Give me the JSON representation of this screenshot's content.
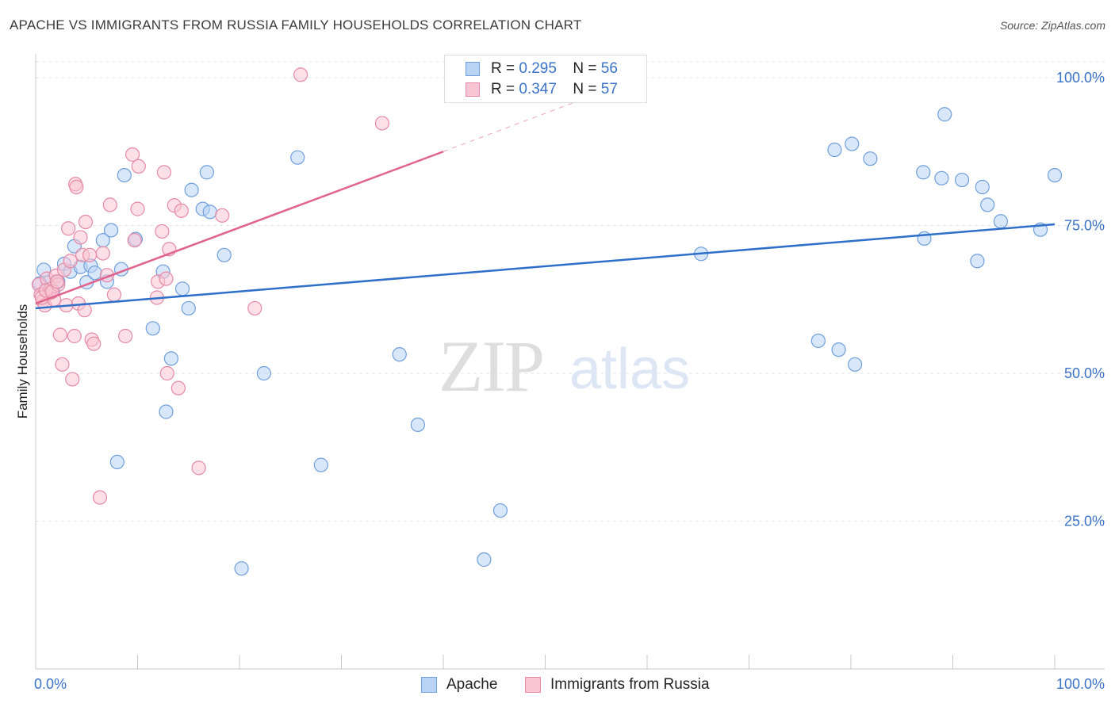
{
  "title": "APACHE VS IMMIGRANTS FROM RUSSIA FAMILY HOUSEHOLDS CORRELATION CHART",
  "source": "Source: ZipAtlas.com",
  "watermark": {
    "zip": "ZIP",
    "atlas": "atlas"
  },
  "legend": {
    "apache": {
      "r_label": "R =",
      "r_value": "0.295",
      "n_label": "N =",
      "n_value": "56"
    },
    "russia": {
      "r_label": "R =",
      "r_value": "0.347",
      "n_label": "N =",
      "n_value": "57"
    }
  },
  "colors": {
    "apache_fill": "#b9d3f5",
    "apache_stroke": "#6f9fdb",
    "apache_line": "#2e6fc9",
    "russia_fill": "#f9c4d4",
    "russia_stroke": "#e58aa6",
    "russia_line": "#e0648e",
    "tick_label": "#3a72c8",
    "grid": "#e3e3e3"
  },
  "chart_data": {
    "type": "scatter",
    "title": "APACHE VS IMMIGRANTS FROM RUSSIA FAMILY HOUSEHOLDS CORRELATION CHART",
    "xlabel": "",
    "ylabel": "Family Households",
    "xlim": [
      0,
      100
    ],
    "ylim": [
      0,
      102
    ],
    "x_tick_labels": [
      {
        "value": 0,
        "label": "0.0%"
      },
      {
        "value": 100,
        "label": "100.0%"
      }
    ],
    "y_tick_labels": [
      {
        "value": 25,
        "label": "25.0%"
      },
      {
        "value": 50,
        "label": "50.0%"
      },
      {
        "value": 75,
        "label": "75.0%"
      },
      {
        "value": 100,
        "label": "100.0%"
      }
    ],
    "grid": true,
    "legend_position": "top-center",
    "series": [
      {
        "name": "Apache",
        "r": 0.295,
        "n": 56,
        "trend": {
          "x0": 0,
          "y0": 61.0,
          "x1": 100,
          "y1": 75.2
        },
        "points": [
          [
            0.8,
            67.5
          ],
          [
            1.2,
            65.3
          ],
          [
            1.7,
            64.0
          ],
          [
            2.2,
            65.5
          ],
          [
            2.8,
            68.5
          ],
          [
            3.4,
            67.2
          ],
          [
            3.8,
            71.5
          ],
          [
            4.4,
            68.0
          ],
          [
            5.0,
            65.4
          ],
          [
            5.4,
            68.2
          ],
          [
            5.8,
            67.0
          ],
          [
            6.6,
            72.5
          ],
          [
            7.0,
            65.5
          ],
          [
            7.4,
            74.2
          ],
          [
            8.4,
            67.6
          ],
          [
            8.0,
            35.0
          ],
          [
            8.7,
            83.5
          ],
          [
            9.8,
            72.7
          ],
          [
            11.5,
            57.6
          ],
          [
            12.5,
            67.2
          ],
          [
            12.8,
            43.5
          ],
          [
            13.3,
            52.5
          ],
          [
            14.4,
            64.3
          ],
          [
            15.3,
            81.0
          ],
          [
            15.0,
            61.0
          ],
          [
            16.4,
            77.8
          ],
          [
            16.8,
            84.0
          ],
          [
            17.1,
            77.3
          ],
          [
            18.5,
            70.0
          ],
          [
            20.2,
            17.0
          ],
          [
            22.4,
            50.0
          ],
          [
            25.7,
            86.5
          ],
          [
            28.0,
            34.5
          ],
          [
            35.7,
            53.2
          ],
          [
            37.5,
            41.3
          ],
          [
            44.0,
            18.5
          ],
          [
            45.6,
            26.8
          ],
          [
            65.3,
            70.2
          ],
          [
            76.8,
            55.5
          ],
          [
            78.4,
            87.8
          ],
          [
            78.8,
            54.0
          ],
          [
            80.1,
            88.8
          ],
          [
            80.4,
            51.5
          ],
          [
            81.9,
            86.3
          ],
          [
            87.1,
            84.0
          ],
          [
            87.2,
            72.8
          ],
          [
            88.9,
            83.0
          ],
          [
            89.2,
            93.8
          ],
          [
            90.9,
            82.7
          ],
          [
            92.4,
            69.0
          ],
          [
            92.9,
            81.5
          ],
          [
            93.4,
            78.5
          ],
          [
            94.7,
            75.7
          ],
          [
            98.6,
            74.3
          ],
          [
            100.0,
            83.5
          ],
          [
            0.4,
            65.2
          ]
        ]
      },
      {
        "name": "Immigrants from Russia",
        "r": 0.347,
        "n": 57,
        "trend": {
          "x0": 0,
          "y0": 61.8,
          "x1": 40,
          "y1": 87.5
        },
        "trend_extension": {
          "x0": 40,
          "y0": 87.5,
          "x1": 57,
          "y1": 98.5
        },
        "points": [
          [
            0.3,
            65.0
          ],
          [
            0.5,
            63.3
          ],
          [
            0.7,
            62.2
          ],
          [
            0.9,
            61.5
          ],
          [
            1.1,
            66.0
          ],
          [
            1.3,
            63.5
          ],
          [
            1.5,
            64.3
          ],
          [
            1.8,
            62.5
          ],
          [
            2.0,
            66.5
          ],
          [
            2.2,
            65.0
          ],
          [
            2.4,
            56.5
          ],
          [
            2.6,
            51.5
          ],
          [
            2.8,
            67.5
          ],
          [
            3.0,
            61.5
          ],
          [
            3.2,
            74.5
          ],
          [
            3.4,
            69.0
          ],
          [
            3.6,
            49.0
          ],
          [
            3.8,
            56.3
          ],
          [
            3.9,
            82.0
          ],
          [
            4.0,
            81.5
          ],
          [
            4.2,
            61.8
          ],
          [
            4.4,
            73.0
          ],
          [
            4.6,
            70.0
          ],
          [
            4.8,
            60.7
          ],
          [
            4.9,
            75.6
          ],
          [
            5.3,
            70.0
          ],
          [
            5.5,
            55.7
          ],
          [
            5.7,
            55.0
          ],
          [
            6.3,
            29.0
          ],
          [
            6.6,
            70.3
          ],
          [
            7.0,
            66.6
          ],
          [
            7.3,
            78.5
          ],
          [
            7.7,
            63.3
          ],
          [
            8.8,
            56.3
          ],
          [
            9.5,
            87.0
          ],
          [
            9.7,
            72.5
          ],
          [
            10.0,
            77.8
          ],
          [
            10.1,
            85.0
          ],
          [
            11.9,
            62.8
          ],
          [
            12.0,
            65.5
          ],
          [
            12.4,
            74.0
          ],
          [
            12.6,
            84.0
          ],
          [
            12.8,
            66.0
          ],
          [
            12.9,
            50.0
          ],
          [
            13.1,
            71.0
          ],
          [
            13.6,
            78.4
          ],
          [
            14.0,
            47.5
          ],
          [
            14.3,
            77.5
          ],
          [
            16.0,
            34.0
          ],
          [
            18.3,
            76.7
          ],
          [
            21.5,
            61.0
          ],
          [
            26.0,
            100.5
          ],
          [
            34.0,
            92.3
          ],
          [
            0.6,
            62.8
          ],
          [
            1.0,
            64.0
          ],
          [
            1.6,
            63.8
          ],
          [
            2.1,
            65.5
          ]
        ]
      }
    ]
  }
}
